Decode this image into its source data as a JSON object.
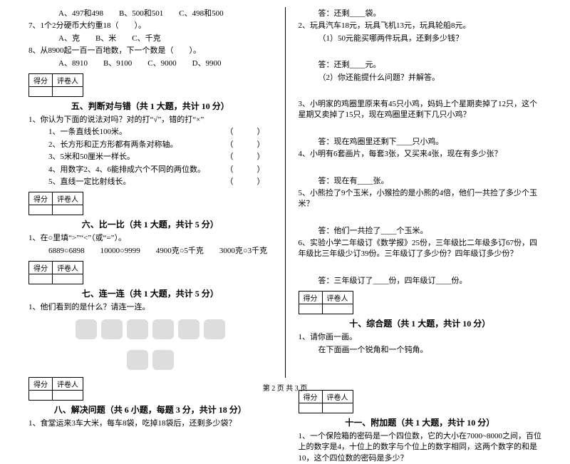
{
  "left": {
    "q6_opts": "A、497和498　　B、500和501　　C、498和500",
    "q7": "7、1个2分硬币大约重18（　　）。",
    "q7_opts": "A、克　　B、米　　C、千克",
    "q8": "8、从8900起一百一百地数，下一个数是（　　）。",
    "q8_opts": "A、8910　　B、9100　　C、9000　　D、9900",
    "score_l": "得分",
    "score_r": "评卷人",
    "sec5_title": "五、判断对与错（共 1 大题，共计 10 分）",
    "sec5_q1": "1、你认为下面的说法对吗？对的打“√”，错的打“×”",
    "sec5_i1": "1、一条直线长100米。",
    "sec5_i2": "2、长方形和正方形都有两条对称轴。",
    "sec5_i3": "3、5米和50厘米一样长。",
    "sec5_i4": "4、用数字2、4、6能排成六个不同的两位数。",
    "sec5_i5": "5、直线一定比射线长。",
    "paren": "（　　　）",
    "sec6_title": "六、比一比（共 1 大题，共计 5 分）",
    "sec6_q1": "1、在○里填“>”“<”（或“=”）。",
    "sec6_line": "6889○6898　　10000○9999　　4900克○5千克　　3000克○3千克",
    "sec7_title": "七、连一连（共 1 大题，共计 5 分）",
    "sec7_q1": "1、他们看到的是什么？请连一连。",
    "sec8_title": "八、解决问题（共 6 小题，每题 3 分，共计 18 分）",
    "sec8_q1": "1、食堂运来3车大米，每车8袋，吃掉18袋后，还剩多少袋？"
  },
  "right": {
    "a1": "答：还剩____袋。",
    "q2": "2、玩具汽车18元，玩具飞机13元，玩具轮船8元。",
    "q2_1": "（1）50元能买哪两件玩具，还剩多少钱？",
    "q2_1a": "答：还剩____元。",
    "q2_2": "（2）你还能提什么问题？并解答。",
    "q3": "3、小明家的鸡圈里原来有45只小鸡，妈妈上个星期卖掉了12只，这个星期又卖掉了15只，现在鸡圈里还剩下几只小鸡？",
    "q3a": "答：现在鸡圈里还剩下____只小鸡。",
    "q4": "4、小明有6套画片，每套3张，又买来4张，现在有多少张？",
    "q4a": "答：现在有____张。",
    "q5": "5、小熊捡了9个玉米，小猴捡的是小熊的4倍，他们一共捡了多少个玉米？",
    "q5a": "答：他们一共捡了____个玉米。",
    "q6": "6、实验小学二年级订《数学报》25份，三年级比二年级多订67份，四年级比三年级少订39份。三年级订了多少份？四年级订多少份？",
    "q6a": "答：三年级订了____份，四年级订____份。",
    "score_l": "得分",
    "score_r": "评卷人",
    "sec10_title": "十、综合题（共 1 大题，共计 10 分）",
    "sec10_q1": "1、请你画一画。",
    "sec10_q1b": "在下面画一个锐角和一个钝角。",
    "sec11_title": "十一、附加题（共 1 大题，共计 10 分）",
    "sec11_q1": "1、一个保险箱的密码是一个四位数，它的大小在7000~8000之间，百位上的数字是4，十位上的数字与个位上的数字相同，这两个数字的和是10，这个四位数的密码是多少？"
  },
  "footer": "第 2 页 共 3 页"
}
